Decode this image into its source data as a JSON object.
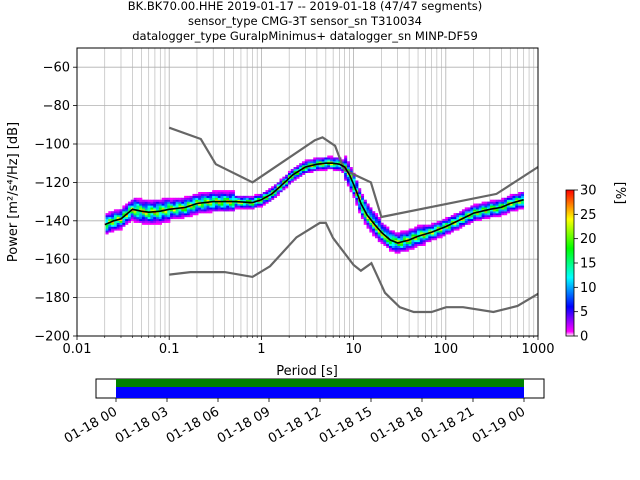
{
  "title_lines": [
    "BK.BK70.00.HHE   2019-01-17 -- 2019-01-18  (47/47 segments)",
    "sensor_type CMG-3T sensor_sn T310034",
    "datalogger_type GuralpMinimus+ datalogger_sn MINP-DF59"
  ],
  "chart_data": {
    "type": "heatmap",
    "xlabel": "Period [s]",
    "ylabel": "Power [m²/s⁴/Hz] [dB]",
    "x_scale": "log",
    "xlim": [
      0.01,
      1000
    ],
    "ylim": [
      -200,
      -50
    ],
    "x_ticks": [
      0.01,
      0.1,
      1,
      10,
      100,
      1000
    ],
    "x_tick_labels": [
      "0.01",
      "0.1",
      "1",
      "10",
      "100",
      "1000"
    ],
    "y_ticks": [
      -200,
      -180,
      -160,
      -140,
      -120,
      -100,
      -80,
      -60
    ],
    "y_tick_labels": [
      "−200",
      "−180",
      "−160",
      "−140",
      "−120",
      "−100",
      "−80",
      "−60"
    ],
    "grid": true,
    "colorbar": {
      "label": "[%]",
      "range": [
        0,
        30
      ],
      "ticks": [
        0,
        5,
        10,
        15,
        20,
        25,
        30
      ],
      "colors": [
        "#ff00ff",
        "#0000ff",
        "#00ffff",
        "#00ff00",
        "#ffff00",
        "#ff0000"
      ]
    },
    "mode_curve": {
      "name": "mode",
      "color": "#000000",
      "points": [
        [
          0.02,
          -142
        ],
        [
          0.025,
          -140
        ],
        [
          0.03,
          -139
        ],
        [
          0.04,
          -134
        ],
        [
          0.05,
          -135
        ],
        [
          0.06,
          -135.5
        ],
        [
          0.08,
          -135
        ],
        [
          0.1,
          -134
        ],
        [
          0.15,
          -133
        ],
        [
          0.2,
          -131
        ],
        [
          0.3,
          -130
        ],
        [
          0.5,
          -130
        ],
        [
          0.8,
          -130.5
        ],
        [
          1.0,
          -129
        ],
        [
          1.3,
          -126
        ],
        [
          1.7,
          -121
        ],
        [
          2.2,
          -116
        ],
        [
          3.0,
          -112
        ],
        [
          4.0,
          -110.5
        ],
        [
          5.0,
          -110
        ],
        [
          6.0,
          -110
        ],
        [
          7.0,
          -110.5
        ],
        [
          8.0,
          -112
        ],
        [
          9.0,
          -116
        ],
        [
          10,
          -121
        ],
        [
          11,
          -126
        ],
        [
          12,
          -131
        ],
        [
          14,
          -137
        ],
        [
          17,
          -142
        ],
        [
          20,
          -146
        ],
        [
          25,
          -150
        ],
        [
          30,
          -151.5
        ],
        [
          40,
          -150
        ],
        [
          50,
          -148
        ],
        [
          70,
          -146
        ],
        [
          100,
          -143
        ],
        [
          150,
          -139
        ],
        [
          200,
          -136
        ],
        [
          300,
          -134
        ],
        [
          400,
          -133
        ],
        [
          500,
          -131
        ],
        [
          700,
          -129
        ]
      ]
    },
    "noise_models": [
      {
        "name": "NHNM",
        "color": "#666666",
        "points": [
          [
            0.1,
            -91.5
          ],
          [
            0.22,
            -97.4
          ],
          [
            0.32,
            -110.5
          ],
          [
            0.8,
            -120
          ],
          [
            3.8,
            -98
          ],
          [
            4.6,
            -96.5
          ],
          [
            6.3,
            -101
          ],
          [
            7.9,
            -113.5
          ],
          [
            15.4,
            -120
          ],
          [
            20,
            -138
          ],
          [
            354.8,
            -126
          ],
          [
            1000,
            -112
          ]
        ]
      },
      {
        "name": "NLNM",
        "color": "#666666",
        "points": [
          [
            0.1,
            -168
          ],
          [
            0.17,
            -166.7
          ],
          [
            0.4,
            -166.7
          ],
          [
            0.8,
            -169.2
          ],
          [
            1.24,
            -163.7
          ],
          [
            2.4,
            -148.6
          ],
          [
            4.3,
            -141.1
          ],
          [
            5.0,
            -141.1
          ],
          [
            6.0,
            -149
          ],
          [
            10,
            -163
          ],
          [
            12,
            -166
          ],
          [
            15.6,
            -162.1
          ],
          [
            21.9,
            -177.5
          ],
          [
            31.6,
            -185
          ],
          [
            45,
            -187.5
          ],
          [
            70,
            -187.5
          ],
          [
            101,
            -185
          ],
          [
            154,
            -185
          ],
          [
            328,
            -187.5
          ],
          [
            600,
            -184.4
          ],
          [
            1000,
            -178
          ]
        ]
      }
    ],
    "time_coverage": {
      "tick_labels": [
        "01-18 00",
        "01-18 03",
        "01-18 06",
        "01-18 09",
        "01-18 12",
        "01-18 15",
        "01-18 18",
        "01-18 21",
        "01-19 00"
      ],
      "bar_colors": {
        "data": "#008000",
        "used": "#0000ff"
      },
      "coverage_fraction": [
        0.0,
        1.0
      ]
    }
  }
}
